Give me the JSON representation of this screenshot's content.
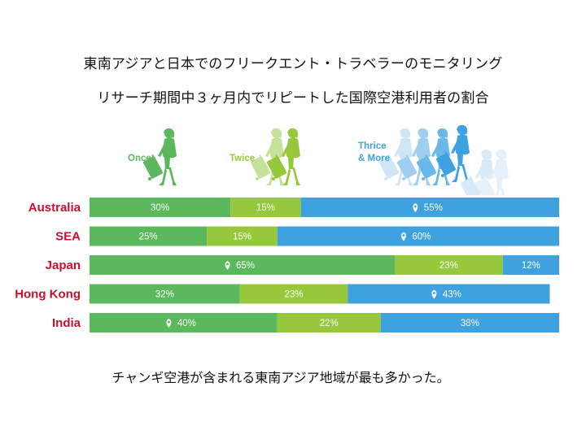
{
  "title_line1": "東南アジアと日本でのフリークエント・トラベラーのモニタリング",
  "title_line2": "リサーチ期間中３ヶ月内でリピートした国際空港利用者の割合",
  "footer_note": "チャンギ空港が含まれる東南アジア地域が最も多かった。",
  "legend_labels": {
    "once": "Once",
    "twice": "Twice",
    "thrice_line1": "Thrice",
    "thrice_line2": "& More"
  },
  "colors": {
    "once": "#5cb85c",
    "twice": "#96c83c",
    "thrice": "#3ea2e0",
    "label_red": "#c8102e",
    "twice_legend": "#a8d26a",
    "thrice_legend": "#6ab8ea"
  },
  "icons": [
    "traveler-with-luggage-icon",
    "location-pin-icon"
  ],
  "chart_data": {
    "type": "bar",
    "orientation": "horizontal",
    "stacked": true,
    "unit": "%",
    "categories": [
      "Australia",
      "SEA",
      "Japan",
      "Hong Kong",
      "India"
    ],
    "series": [
      {
        "name": "Once",
        "color": "#5cb85c",
        "values": [
          30,
          25,
          65,
          32,
          40
        ]
      },
      {
        "name": "Twice",
        "color": "#96c83c",
        "values": [
          15,
          15,
          23,
          23,
          22
        ]
      },
      {
        "name": "Thrice & More",
        "color": "#3ea2e0",
        "values": [
          55,
          60,
          12,
          43,
          38
        ]
      }
    ],
    "pin_marked_series": [
      2,
      2,
      0,
      2,
      0
    ],
    "xlim": [
      0,
      100
    ],
    "legend_position": "top"
  }
}
